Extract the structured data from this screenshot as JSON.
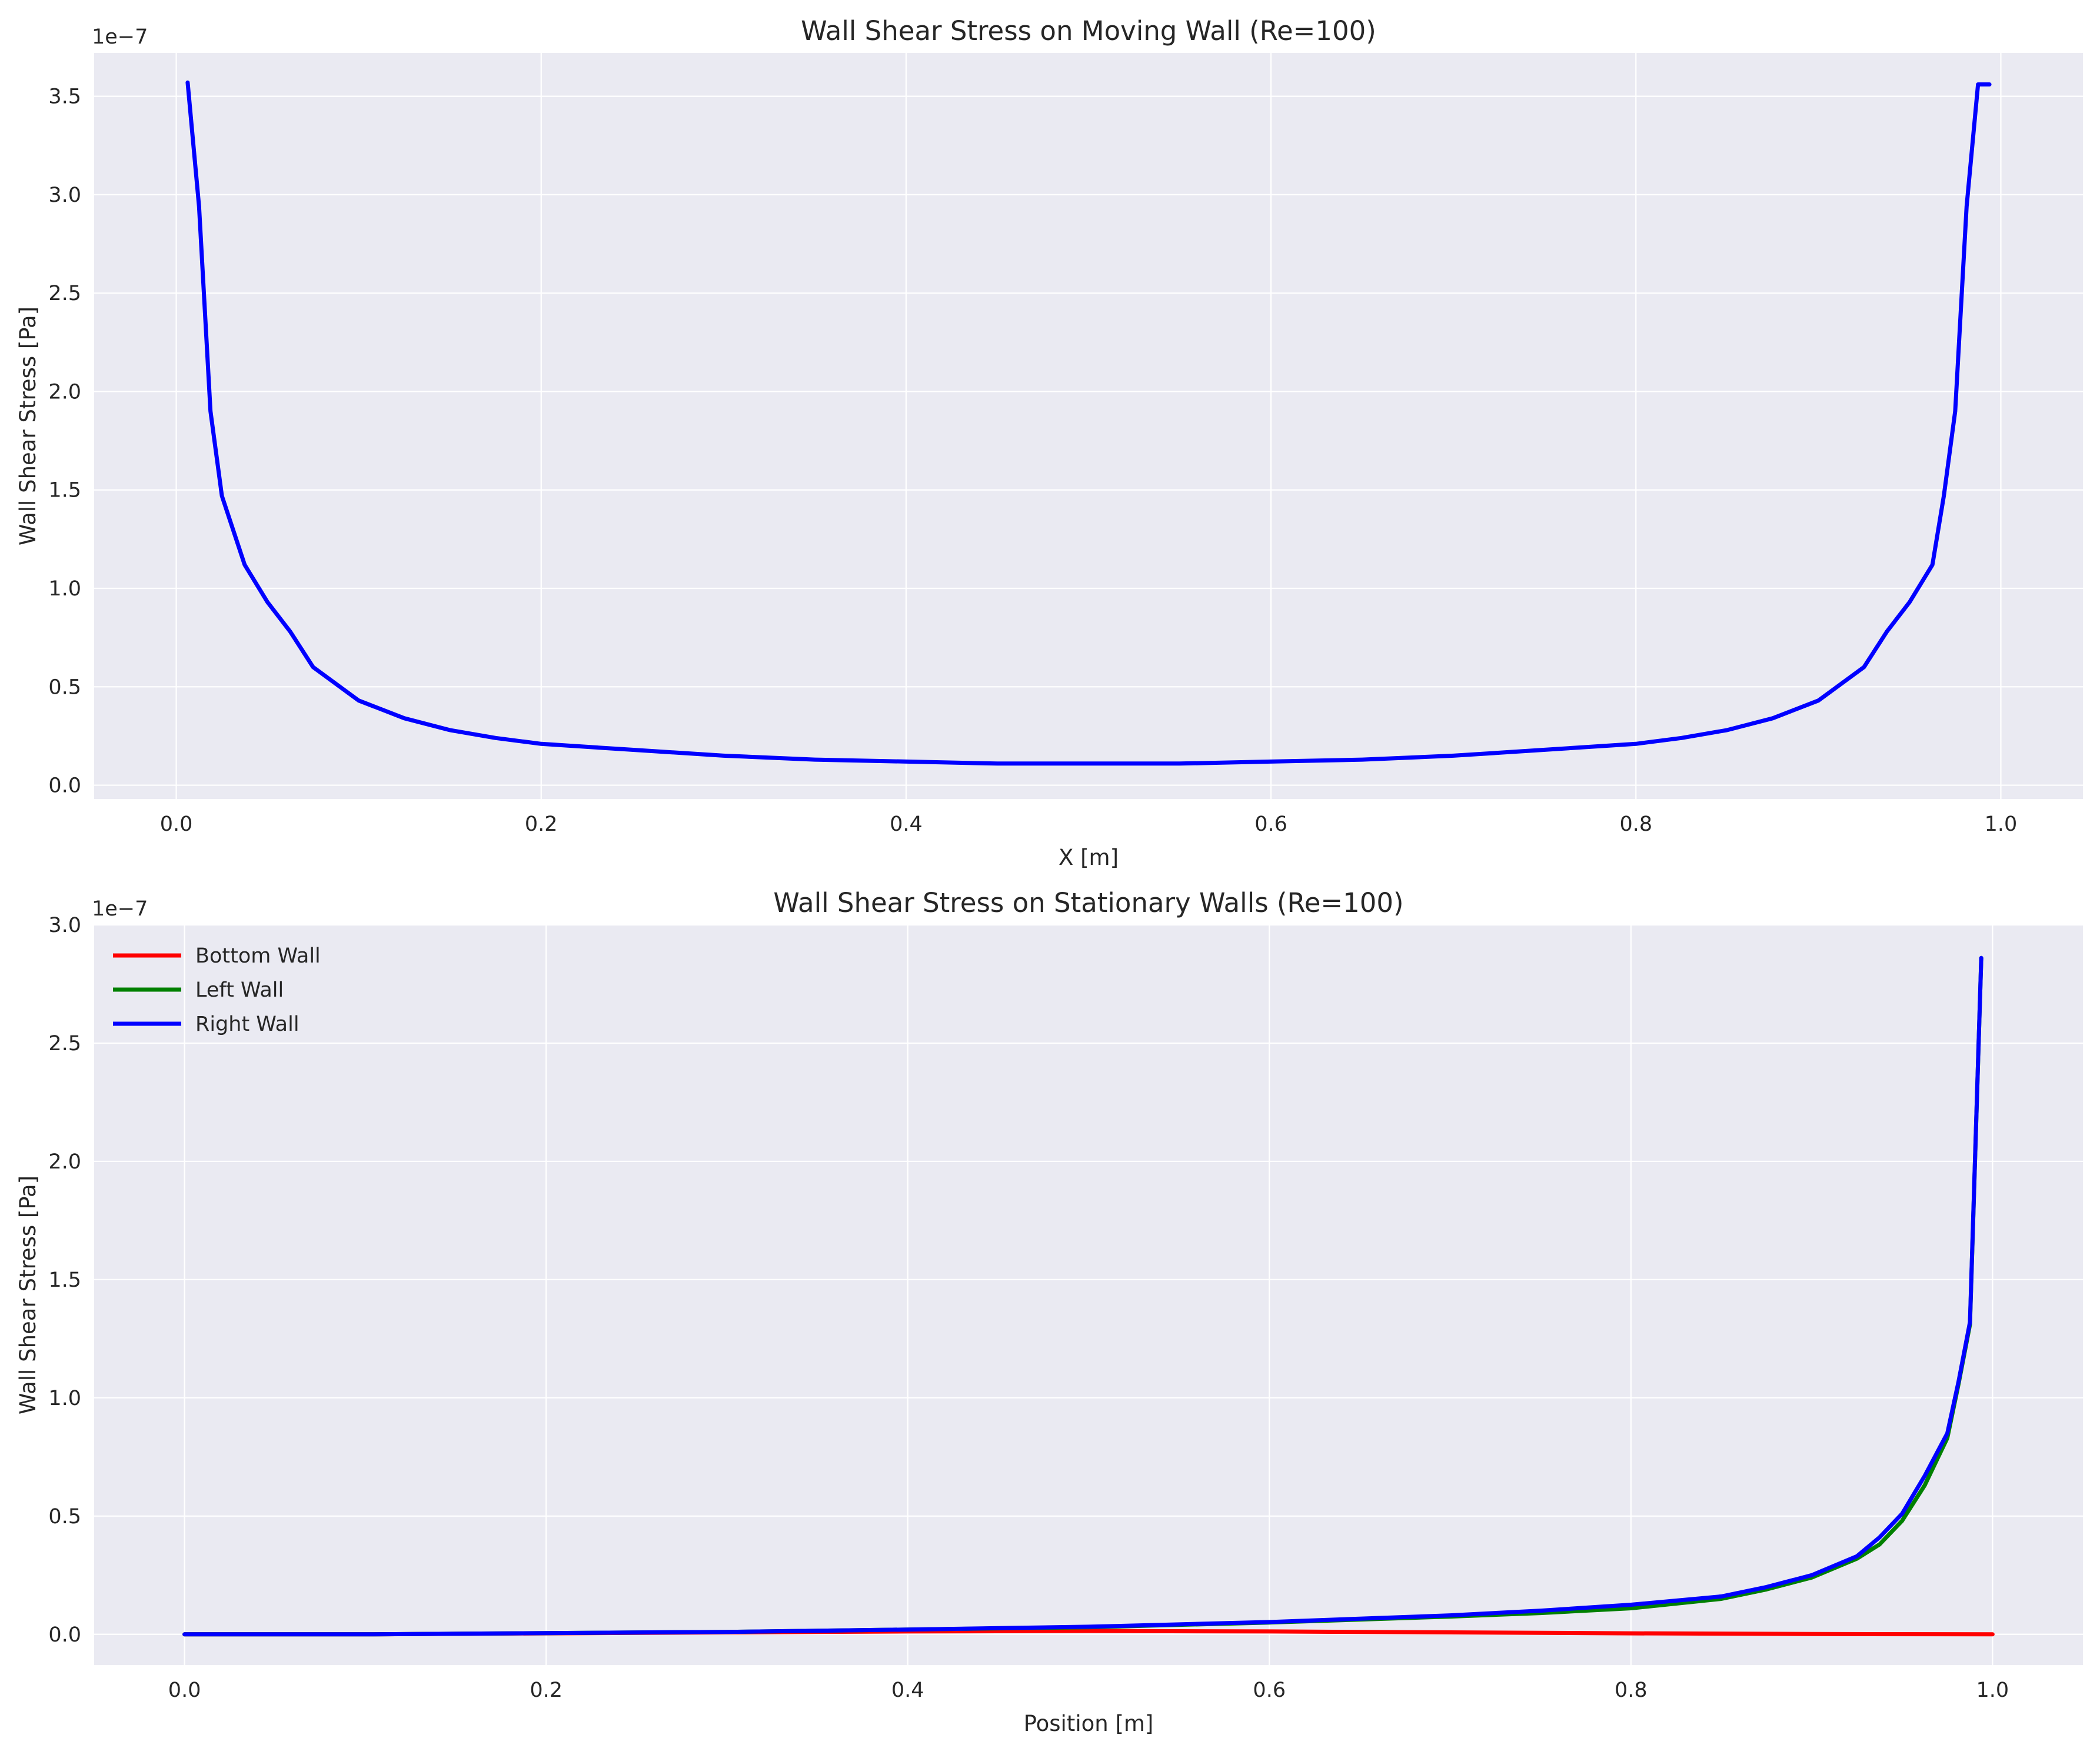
{
  "chart_data": [
    {
      "type": "line",
      "title": "Wall Shear Stress on Moving Wall (Re=100)",
      "xlabel": "X [m]",
      "ylabel": "Wall Shear Stress [Pa]",
      "y_offset_label": "1e−7",
      "y_scale": 1e-07,
      "xlim": [
        -0.045,
        1.045
      ],
      "ylim": [
        -0.07,
        3.72
      ],
      "xticks": [
        0.0,
        0.2,
        0.4,
        0.6,
        0.8,
        1.0
      ],
      "xtick_labels": [
        "0.0",
        "0.2",
        "0.4",
        "0.6",
        "0.8",
        "1.0"
      ],
      "yticks": [
        0.0,
        0.5,
        1.0,
        1.5,
        2.0,
        2.5,
        3.0,
        3.5
      ],
      "ytick_labels": [
        "0.0",
        "0.5",
        "1.0",
        "1.5",
        "2.0",
        "2.5",
        "3.0",
        "3.5"
      ],
      "grid": true,
      "legend": null,
      "series": [
        {
          "color": "#0000ff",
          "x": [
            0.00625,
            0.0125,
            0.01875,
            0.025,
            0.0375,
            0.05,
            0.0625,
            0.075,
            0.1,
            0.125,
            0.15,
            0.175,
            0.2,
            0.25,
            0.3,
            0.35,
            0.4,
            0.45,
            0.5,
            0.55,
            0.6,
            0.65,
            0.7,
            0.75,
            0.8,
            0.825,
            0.85,
            0.875,
            0.9,
            0.925,
            0.9375,
            0.95,
            0.9625,
            0.96875,
            0.975,
            0.98125,
            0.9875,
            0.99375
          ],
          "y": [
            3.57,
            2.94,
            1.9,
            1.47,
            1.12,
            0.93,
            0.78,
            0.6,
            0.43,
            0.34,
            0.28,
            0.24,
            0.21,
            0.18,
            0.15,
            0.13,
            0.12,
            0.11,
            0.11,
            0.11,
            0.12,
            0.13,
            0.15,
            0.18,
            0.21,
            0.24,
            0.28,
            0.34,
            0.43,
            0.6,
            0.78,
            0.93,
            1.12,
            1.47,
            1.9,
            2.94,
            3.56,
            3.56
          ]
        }
      ]
    },
    {
      "type": "line",
      "title": "Wall Shear Stress on Stationary Walls (Re=100)",
      "xlabel": "Position [m]",
      "ylabel": "Wall Shear Stress [Pa]",
      "y_offset_label": "1e−7",
      "y_scale": 1e-07,
      "xlim": [
        -0.05,
        1.05
      ],
      "ylim": [
        -0.13,
        3.0
      ],
      "xticks": [
        0.0,
        0.2,
        0.4,
        0.6,
        0.8,
        1.0
      ],
      "xtick_labels": [
        "0.0",
        "0.2",
        "0.4",
        "0.6",
        "0.8",
        "1.0"
      ],
      "yticks": [
        0.0,
        0.5,
        1.0,
        1.5,
        2.0,
        2.5,
        3.0
      ],
      "ytick_labels": [
        "0.0",
        "0.5",
        "1.0",
        "1.5",
        "2.0",
        "2.5",
        "3.0"
      ],
      "grid": true,
      "legend": "upper-left",
      "series": [
        {
          "name": "Bottom Wall",
          "color": "#ff0000",
          "x": [
            0.0,
            0.1,
            0.2,
            0.3,
            0.4,
            0.5,
            0.6,
            0.7,
            0.8,
            0.9,
            1.0
          ],
          "y": [
            0.0,
            0.0,
            0.004,
            0.008,
            0.012,
            0.014,
            0.012,
            0.008,
            0.004,
            0.001,
            0.0
          ]
        },
        {
          "name": "Left Wall",
          "color": "#008000",
          "x": [
            0.0,
            0.1,
            0.2,
            0.3,
            0.4,
            0.5,
            0.6,
            0.7,
            0.75,
            0.8,
            0.85,
            0.875,
            0.9,
            0.925,
            0.9375,
            0.95,
            0.9625,
            0.975,
            0.98125,
            0.9875,
            0.99375
          ],
          "y": [
            0.0,
            0.0,
            0.005,
            0.01,
            0.02,
            0.03,
            0.05,
            0.075,
            0.09,
            0.11,
            0.15,
            0.19,
            0.24,
            0.32,
            0.38,
            0.48,
            0.63,
            0.83,
            1.06,
            1.31,
            2.86
          ]
        },
        {
          "name": "Right Wall",
          "color": "#0000ff",
          "x": [
            0.0,
            0.1,
            0.2,
            0.3,
            0.4,
            0.5,
            0.6,
            0.7,
            0.75,
            0.8,
            0.85,
            0.875,
            0.9,
            0.925,
            0.9375,
            0.95,
            0.9625,
            0.975,
            0.98125,
            0.9875,
            0.99375
          ],
          "y": [
            0.0,
            0.0,
            0.005,
            0.01,
            0.02,
            0.032,
            0.052,
            0.08,
            0.1,
            0.125,
            0.16,
            0.2,
            0.25,
            0.33,
            0.41,
            0.51,
            0.67,
            0.85,
            1.07,
            1.32,
            2.86
          ]
        }
      ]
    }
  ],
  "style": {
    "axes_bg": "#eaeaf2",
    "grid_color": "#ffffff",
    "text_color": "#262626"
  }
}
